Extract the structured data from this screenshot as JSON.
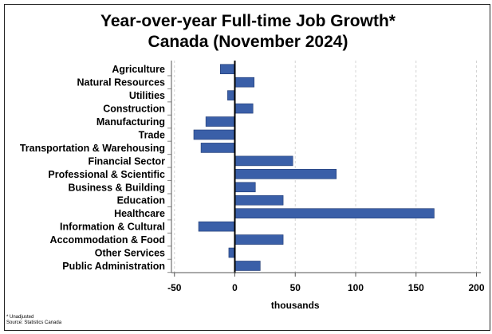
{
  "chart_data": {
    "type": "bar",
    "orientation": "horizontal",
    "title": "Year-over-year Full-time Job Growth*",
    "subtitle": "Canada (November 2024)",
    "categories": [
      "Agriculture",
      "Natural Resources",
      "Utilities",
      "Construction",
      "Manufacturing",
      "Trade",
      "Transportation & Warehousing",
      "Financial Sector",
      "Professional & Scientific",
      "Business & Building",
      "Education",
      "Healthcare",
      "Information & Cultural",
      "Accommodation & Food",
      "Other Services",
      "Public Administration"
    ],
    "values": [
      -12,
      16,
      -6,
      15,
      -24,
      -34,
      -28,
      48,
      84,
      17,
      40,
      165,
      -30,
      40,
      -5,
      21
    ],
    "xlabel": "thousands",
    "ylabel": "",
    "xlim": [
      -50,
      200
    ],
    "xticks": [
      -50,
      0,
      50,
      100,
      150,
      200
    ],
    "xtick_labels": [
      "-50",
      "0",
      "50",
      "100",
      "150",
      "200"
    ],
    "bar_color": "#3a5fa8",
    "grid": "vertical dashed",
    "footnotes": [
      "* Unadjusted",
      "Source: Statistics Canada"
    ]
  }
}
